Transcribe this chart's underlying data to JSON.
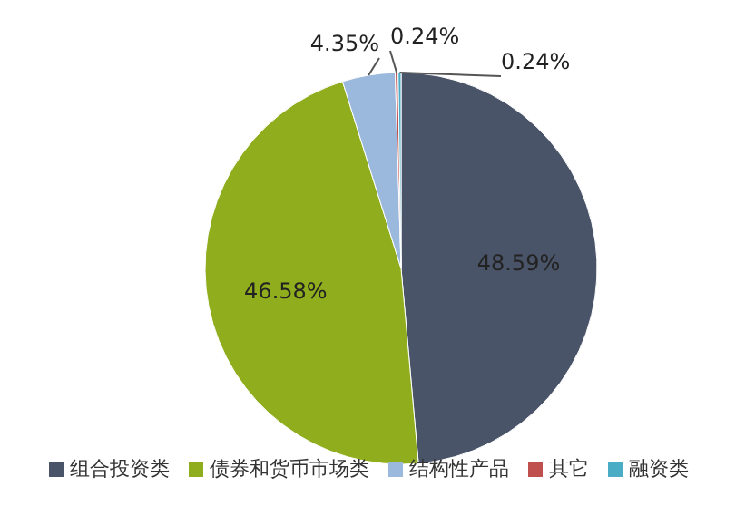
{
  "chart_data": {
    "type": "pie",
    "categories": [
      "组合投资类",
      "债券和货币市场类",
      "结构性产品",
      "其它",
      "融资类"
    ],
    "values": [
      48.59,
      46.58,
      4.35,
      0.24,
      0.24
    ],
    "colors": [
      "#4a5468",
      "#8fad1c",
      "#9bb8dd",
      "#c0504d",
      "#4bacc6"
    ],
    "value_labels": [
      "48.59%",
      "46.58%",
      "4.35%",
      "0.24%",
      "0.24%"
    ],
    "legend": "bottom"
  }
}
